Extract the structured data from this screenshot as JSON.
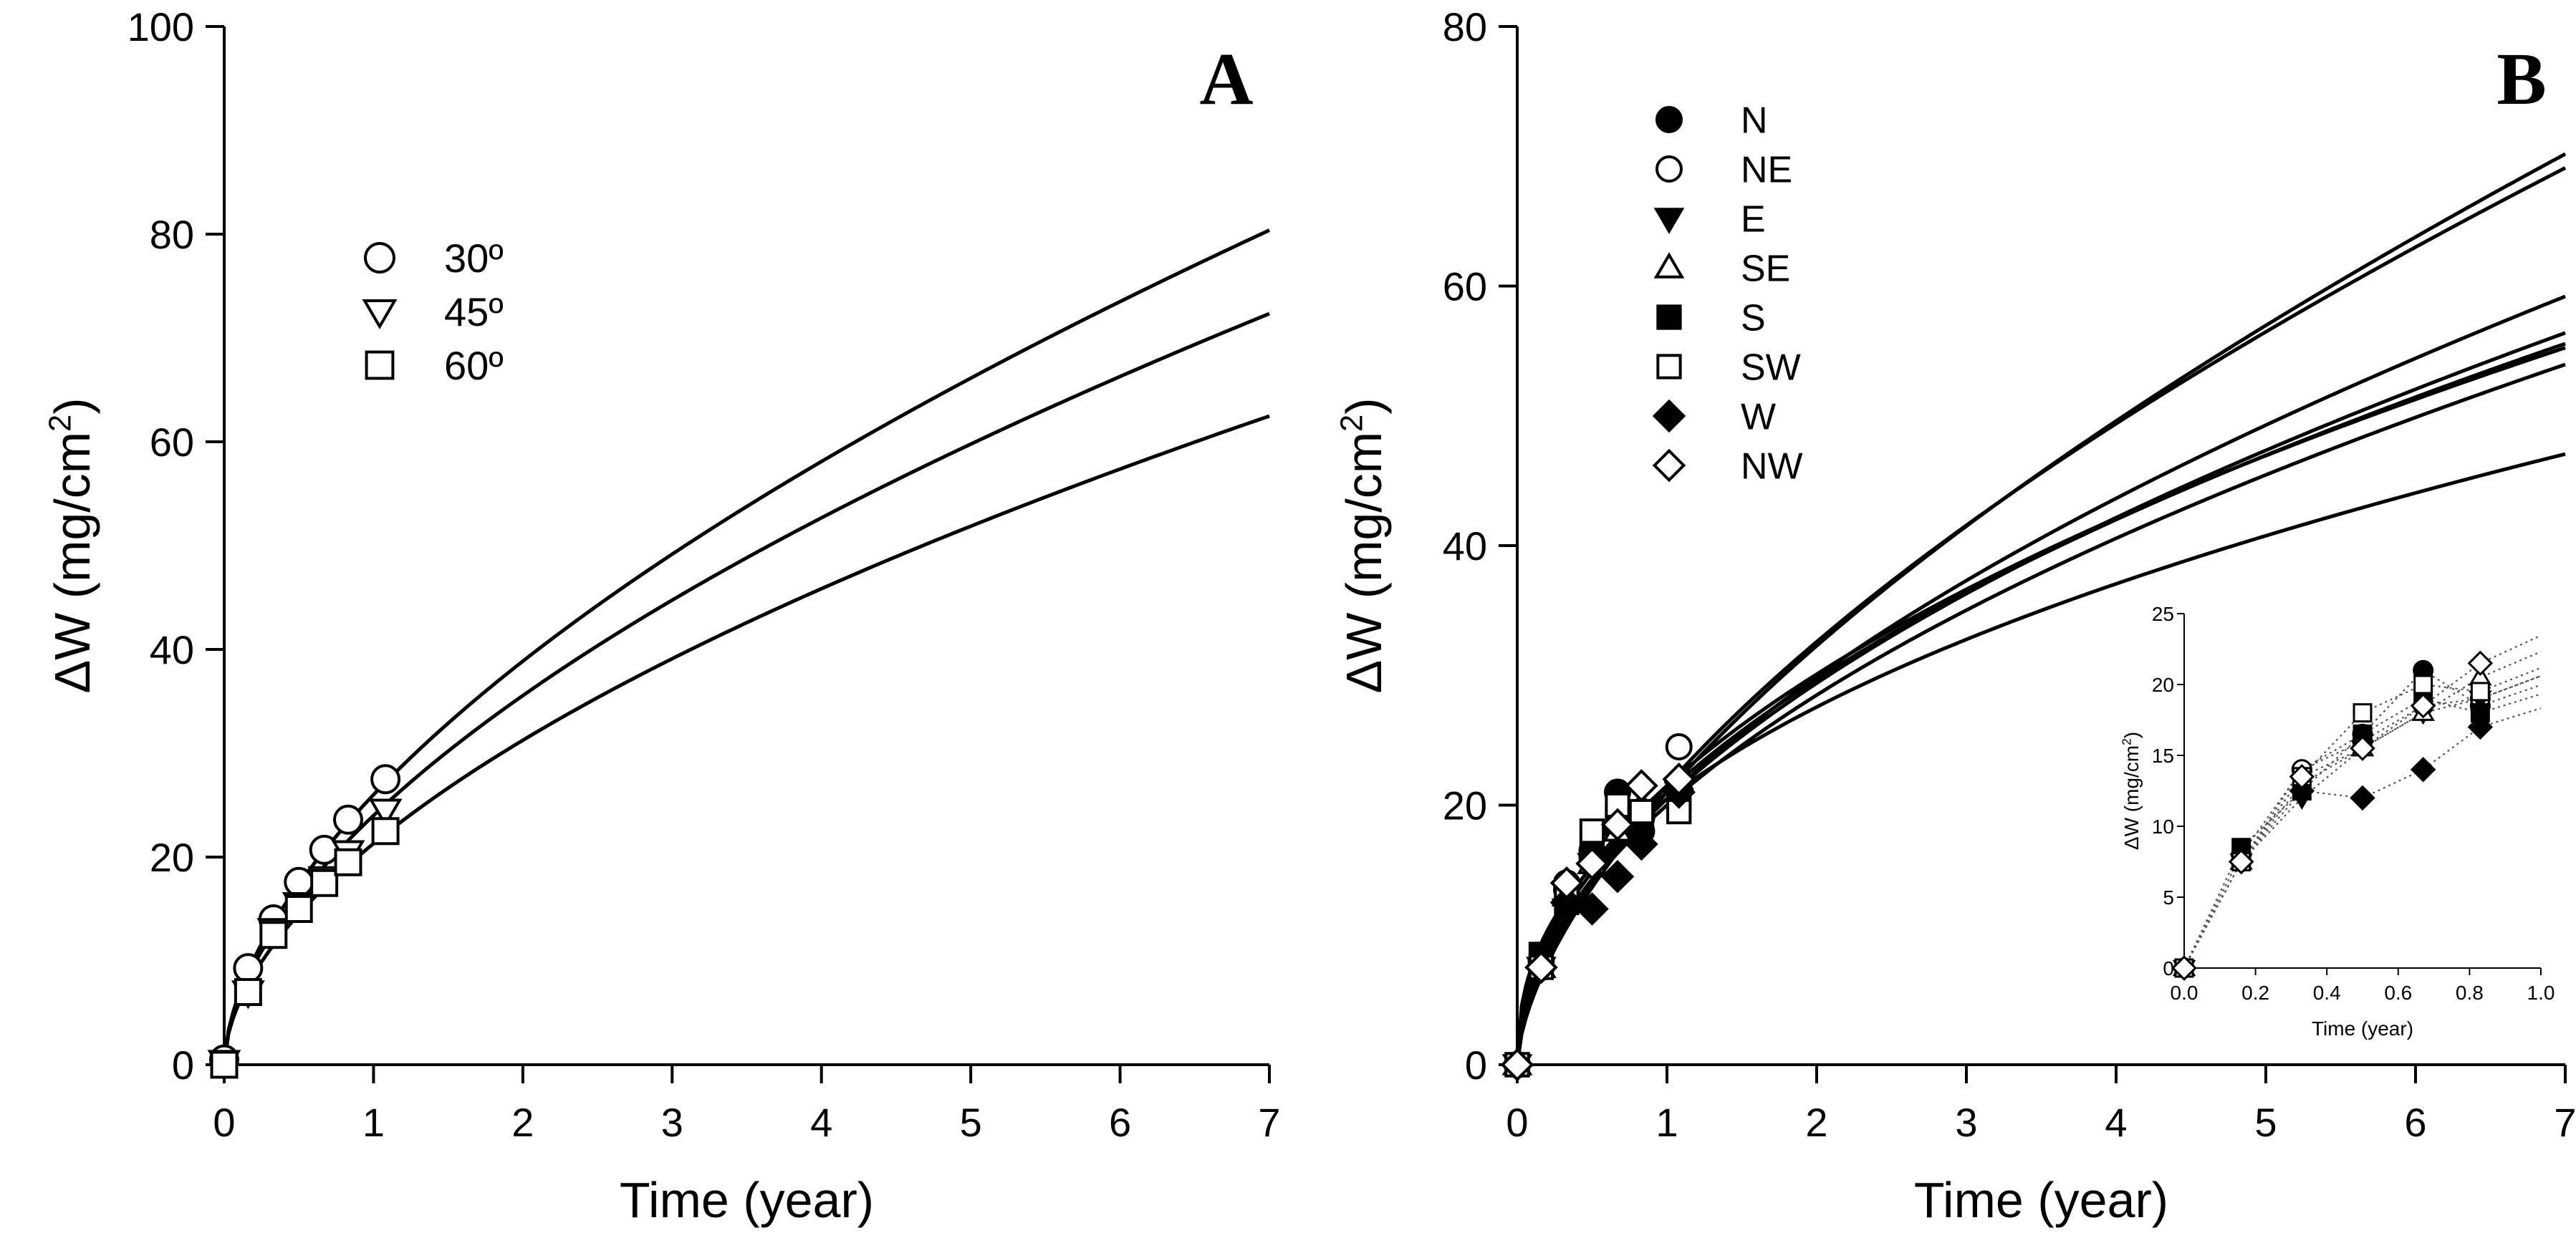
{
  "chart_data": [
    {
      "id": "A",
      "type": "scatter",
      "panel_label": "A",
      "xlabel": "Time (year)",
      "ylabel_main": "ΔW (mg/cm",
      "ylabel_sup": "2",
      "ylabel_close": ")",
      "xlim": [
        0,
        7
      ],
      "ylim": [
        0,
        100
      ],
      "xticks": [
        0,
        1,
        2,
        3,
        4,
        5,
        6,
        7
      ],
      "yticks": [
        0,
        20,
        40,
        60,
        80,
        100
      ],
      "grid": false,
      "legend_position": "upper-left",
      "series": [
        {
          "name": "30º",
          "marker": "circle",
          "filled": false,
          "x": [
            0,
            0.16,
            0.33,
            0.5,
            0.67,
            0.83,
            1.08
          ],
          "y": [
            0.5,
            9.3,
            14.0,
            17.6,
            20.7,
            23.6,
            27.5
          ],
          "fit_power": {
            "a": 26.0,
            "b": 0.58
          }
        },
        {
          "name": "45º",
          "marker": "triangle-down",
          "filled": false,
          "x": [
            0,
            0.16,
            0.33,
            0.5,
            0.67,
            0.83,
            1.08
          ],
          "y": [
            0.3,
            7.0,
            13.0,
            15.5,
            18.0,
            20.5,
            24.5
          ],
          "fit_power": {
            "a": 24.0,
            "b": 0.567
          }
        },
        {
          "name": "60º",
          "marker": "square",
          "filled": false,
          "x": [
            0,
            0.16,
            0.33,
            0.5,
            0.67,
            0.83,
            1.08
          ],
          "y": [
            0.0,
            7.0,
            12.5,
            15.0,
            17.5,
            19.5,
            22.5
          ],
          "fit_power": {
            "a": 21.3,
            "b": 0.553
          }
        }
      ]
    },
    {
      "id": "B",
      "type": "scatter",
      "panel_label": "B",
      "xlabel": "Time (year)",
      "ylabel_main": "ΔW (mg/cm",
      "ylabel_sup": "2",
      "ylabel_close": ")",
      "xlim": [
        0,
        7
      ],
      "ylim": [
        0,
        80
      ],
      "xticks": [
        0,
        1,
        2,
        3,
        4,
        5,
        6,
        7
      ],
      "yticks": [
        0,
        20,
        40,
        60,
        80
      ],
      "grid": false,
      "legend_position": "upper-left",
      "series": [
        {
          "name": "N",
          "marker": "circle",
          "filled": true,
          "x": [
            0,
            0.16,
            0.33,
            0.5,
            0.67,
            0.83,
            1.08
          ],
          "y": [
            0,
            8.0,
            13.5,
            16.0,
            21.0,
            18.0,
            21.5
          ],
          "fit_power": {
            "a": 21.0,
            "b": 0.5
          }
        },
        {
          "name": "NE",
          "marker": "circle",
          "filled": false,
          "x": [
            0,
            0.16,
            0.33,
            0.5,
            0.67,
            0.83,
            1.08
          ],
          "y": [
            0,
            7.5,
            14.0,
            16.5,
            18.0,
            19.0,
            24.5
          ],
          "fit_power": {
            "a": 21.5,
            "b": 0.6
          }
        },
        {
          "name": "E",
          "marker": "triangle-down",
          "filled": true,
          "x": [
            0,
            0.16,
            0.33,
            0.5,
            0.67,
            0.83,
            1.08
          ],
          "y": [
            0,
            7.5,
            12.0,
            15.5,
            17.5,
            19.0,
            21.0
          ],
          "fit_power": {
            "a": 20.5,
            "b": 0.52
          }
        },
        {
          "name": "SE",
          "marker": "triangle-up",
          "filled": false,
          "x": [
            0,
            0.16,
            0.33,
            0.5,
            0.67,
            0.83,
            1.08
          ],
          "y": [
            0,
            7.5,
            13.0,
            15.5,
            18.0,
            20.0,
            22.0
          ],
          "fit_power": {
            "a": 20.0,
            "b": 0.51
          }
        },
        {
          "name": "S",
          "marker": "square",
          "filled": true,
          "x": [
            0,
            0.16,
            0.33,
            0.5,
            0.67,
            0.83,
            1.08
          ],
          "y": [
            0,
            8.5,
            12.5,
            16.5,
            19.0,
            18.5,
            20.5
          ],
          "fit_power": {
            "a": 20.5,
            "b": 0.545
          }
        },
        {
          "name": "SW",
          "marker": "square",
          "filled": false,
          "x": [
            0,
            0.16,
            0.33,
            0.5,
            0.67,
            0.83,
            1.08
          ],
          "y": [
            0,
            7.5,
            13.5,
            18.0,
            20.0,
            19.5,
            19.5
          ],
          "fit_power": {
            "a": 21.5,
            "b": 0.485
          }
        },
        {
          "name": "W",
          "marker": "diamond",
          "filled": true,
          "x": [
            0,
            0.16,
            0.33,
            0.5,
            0.67,
            0.83,
            1.08
          ],
          "y": [
            0,
            7.5,
            12.5,
            12.0,
            14.5,
            17.0,
            21.0
          ],
          "fit_power": {
            "a": 20.5,
            "b": 0.427
          }
        },
        {
          "name": "NW",
          "marker": "diamond",
          "filled": false,
          "x": [
            0,
            0.16,
            0.33,
            0.5,
            0.67,
            0.83,
            1.08
          ],
          "y": [
            0,
            7.5,
            14.0,
            15.5,
            18.5,
            21.5,
            22.0
          ],
          "fit_power": {
            "a": 21.0,
            "b": 0.62
          }
        }
      ]
    },
    {
      "id": "B-inset",
      "type": "scatter",
      "xlabel": "Time (year)",
      "ylabel_main": "ΔW (mg/cm",
      "ylabel_sup": "2",
      "ylabel_close": ")",
      "xlim": [
        0,
        1
      ],
      "ylim": [
        0,
        25
      ],
      "xticks": [
        0.0,
        0.2,
        0.4,
        0.6,
        0.8,
        1.0
      ],
      "xtick_labels": [
        "0.0",
        "0.2",
        "0.4",
        "0.6",
        "0.8",
        "1.0"
      ],
      "yticks": [
        0,
        5,
        10,
        15,
        20,
        25
      ],
      "grid": false,
      "fit_line_style": "dotted",
      "series": [
        {
          "name": "N",
          "marker": "circle",
          "filled": true,
          "x": [
            0,
            0.16,
            0.33,
            0.5,
            0.67,
            0.83
          ],
          "y": [
            0,
            8.0,
            14.0,
            16.5,
            21.0,
            18.5
          ]
        },
        {
          "name": "NE",
          "marker": "circle",
          "filled": false,
          "x": [
            0,
            0.16,
            0.33,
            0.5,
            0.67,
            0.83
          ],
          "y": [
            0,
            7.5,
            14.0,
            16.0,
            18.5,
            19.0
          ]
        },
        {
          "name": "E",
          "marker": "triangle-down",
          "filled": true,
          "x": [
            0,
            0.16,
            0.33,
            0.5,
            0.67,
            0.83
          ],
          "y": [
            0,
            7.5,
            12.0,
            15.5,
            18.0,
            19.0
          ]
        },
        {
          "name": "SE",
          "marker": "triangle-up",
          "filled": false,
          "x": [
            0,
            0.16,
            0.33,
            0.5,
            0.67,
            0.83
          ],
          "y": [
            0,
            7.5,
            13.0,
            15.5,
            18.0,
            20.5
          ]
        },
        {
          "name": "S",
          "marker": "square",
          "filled": true,
          "x": [
            0,
            0.16,
            0.33,
            0.5,
            0.67,
            0.83
          ],
          "y": [
            0,
            8.5,
            12.5,
            16.5,
            19.0,
            18.0
          ]
        },
        {
          "name": "SW",
          "marker": "square",
          "filled": false,
          "x": [
            0,
            0.16,
            0.33,
            0.5,
            0.67,
            0.83
          ],
          "y": [
            0,
            7.5,
            13.5,
            18.0,
            20.0,
            19.5
          ]
        },
        {
          "name": "W",
          "marker": "diamond",
          "filled": true,
          "x": [
            0,
            0.16,
            0.33,
            0.5,
            0.67,
            0.83
          ],
          "y": [
            0,
            7.5,
            12.5,
            12.0,
            14.0,
            17.0
          ]
        },
        {
          "name": "NW",
          "marker": "diamond",
          "filled": false,
          "x": [
            0,
            0.16,
            0.33,
            0.5,
            0.67,
            0.83
          ],
          "y": [
            0,
            7.5,
            13.5,
            15.5,
            18.5,
            21.5
          ]
        }
      ]
    }
  ]
}
